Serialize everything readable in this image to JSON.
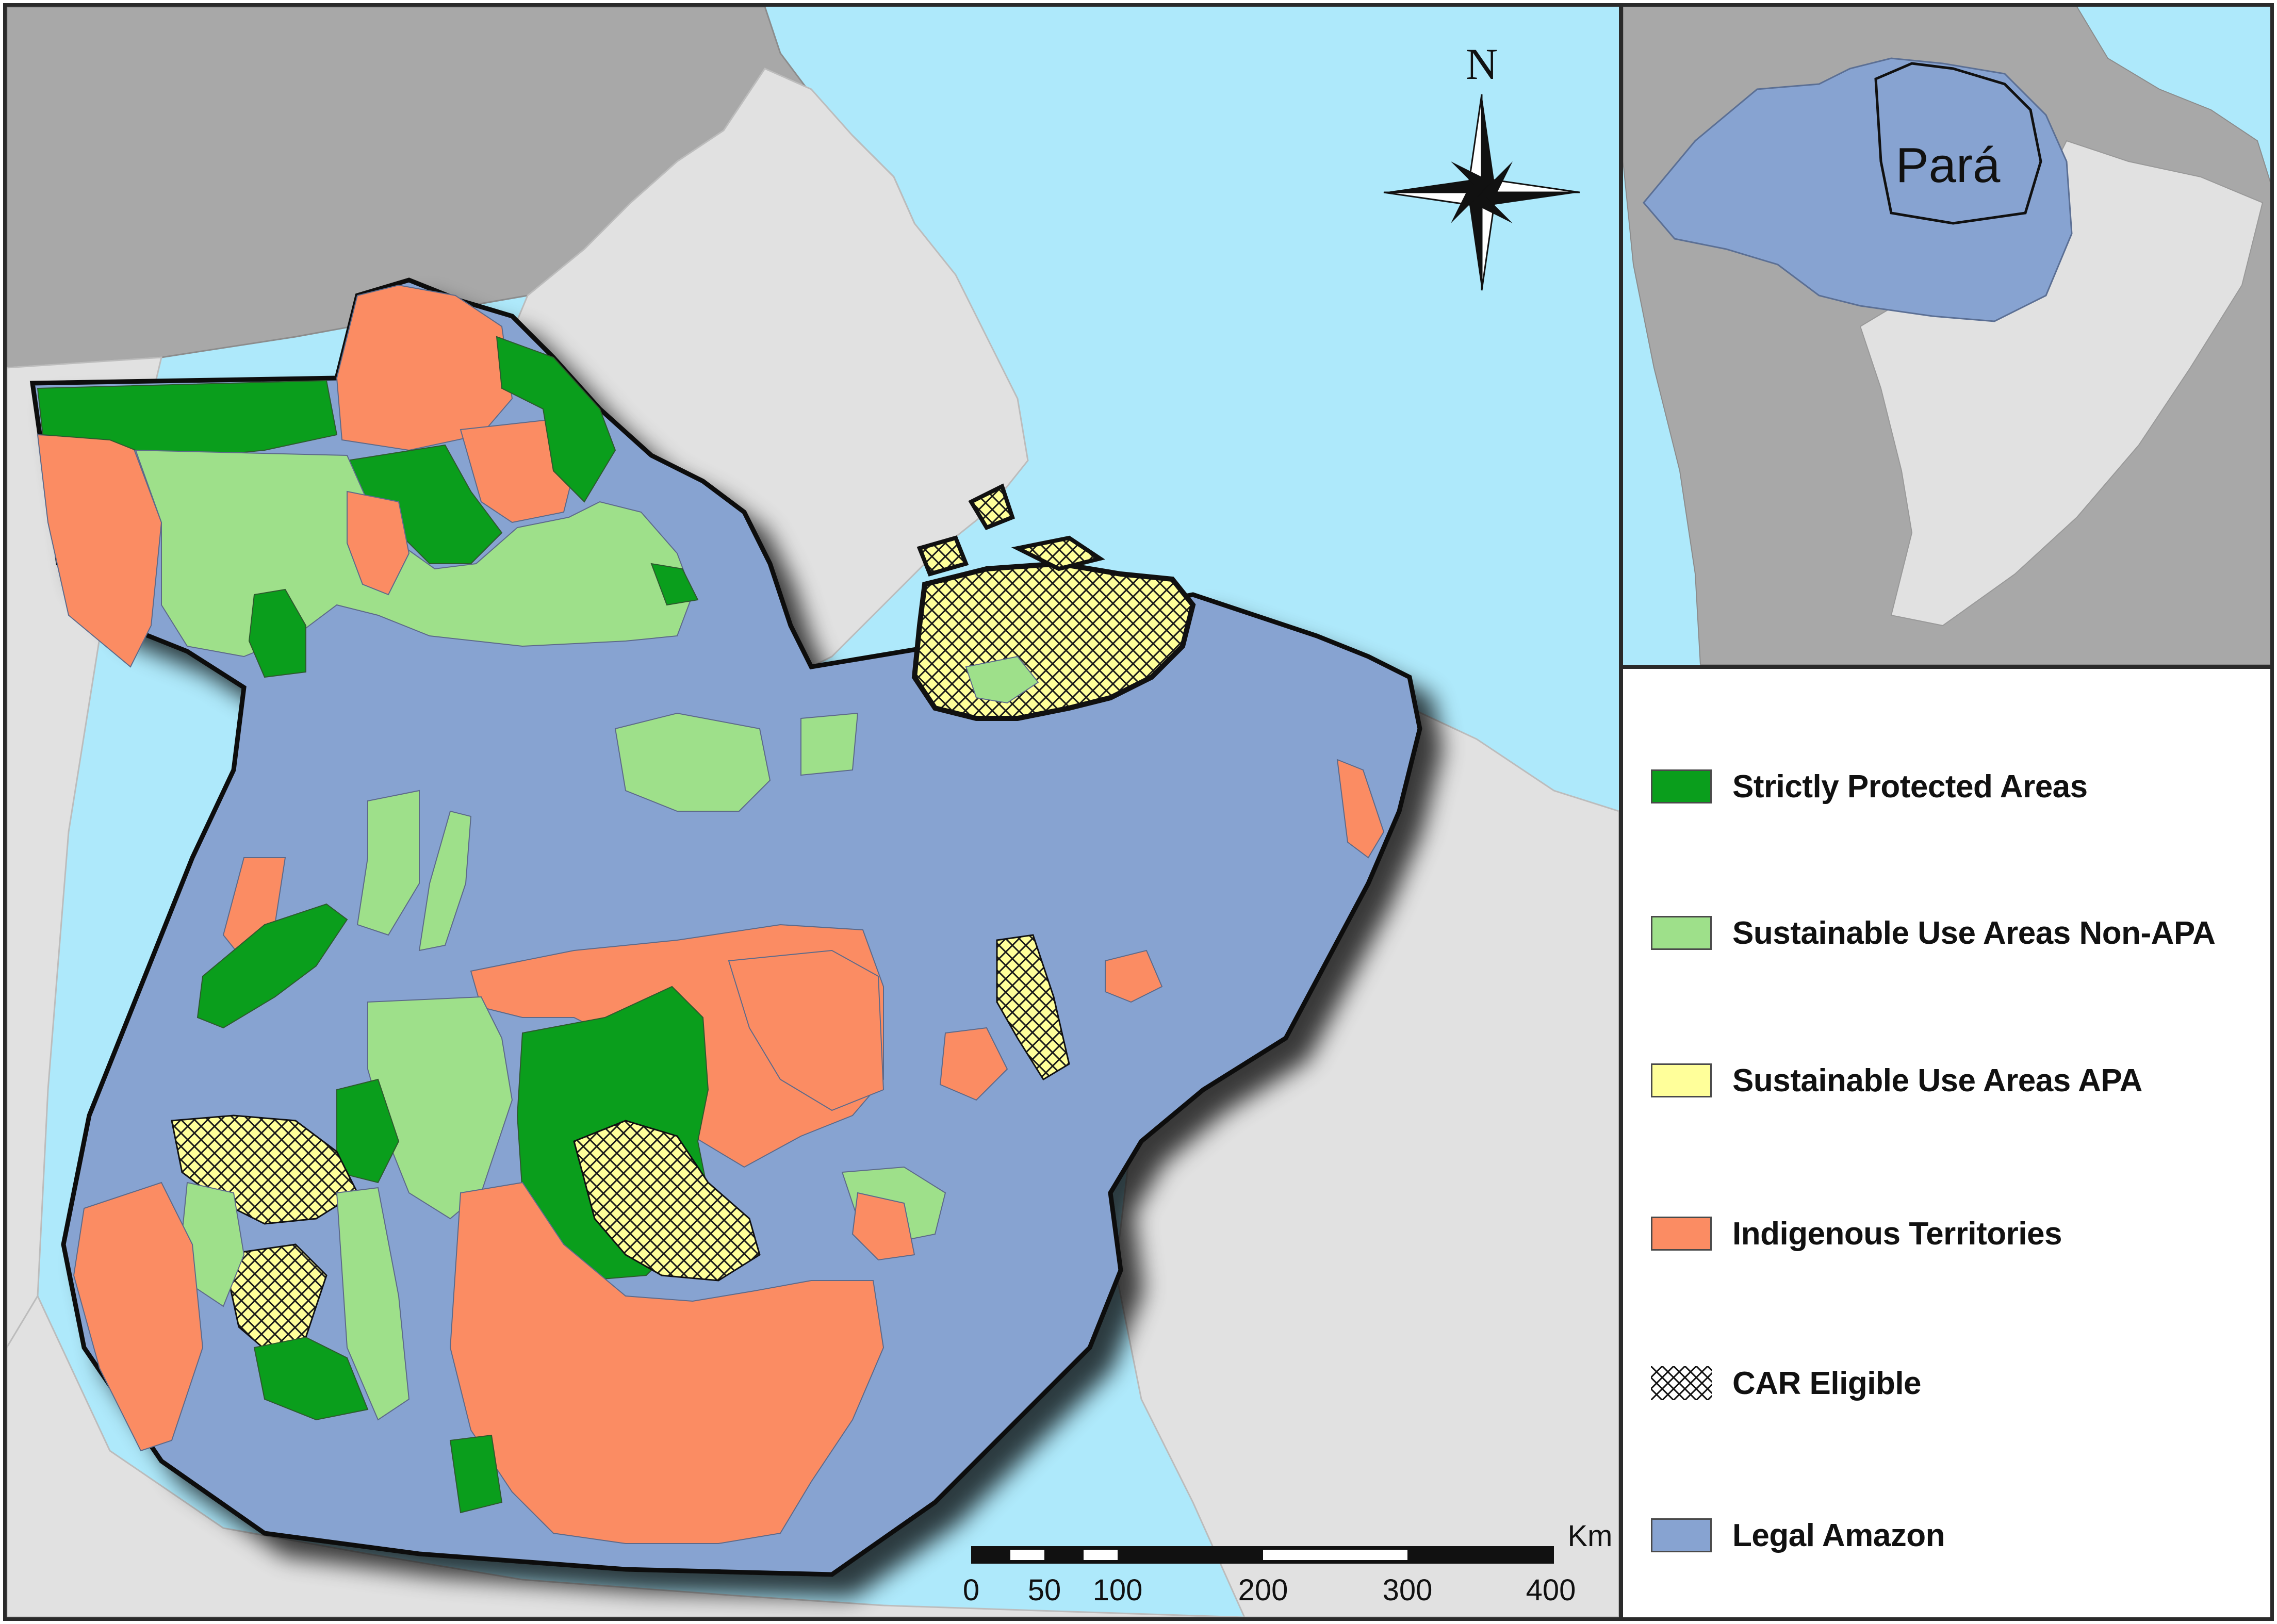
{
  "map": {
    "north_label": "N",
    "inset_label": "Pará",
    "scale": {
      "unit": "Km",
      "ticks": [
        "0",
        "50",
        "100",
        "200",
        "300",
        "400"
      ]
    }
  },
  "legend": {
    "items": [
      {
        "label": "Strictly Protected Areas",
        "color": "#0a9e1c",
        "pattern": "solid"
      },
      {
        "label": "Sustainable Use Areas Non-APA",
        "color": "#9ee08a",
        "pattern": "solid"
      },
      {
        "label": "Sustainable Use Areas APA",
        "color": "#ffff9a",
        "pattern": "solid"
      },
      {
        "label": "Indigenous Territories",
        "color": "#fb8c63",
        "pattern": "solid"
      },
      {
        "label": "CAR Eligible",
        "color": "#ffffff",
        "pattern": "crosshatch"
      },
      {
        "label": "Legal Amazon",
        "color": "#87a3d1",
        "pattern": "solid"
      }
    ]
  },
  "colors": {
    "ocean": "#aee9fb",
    "land_outside": "#e1e1e1",
    "land_dark": "#a8a8a8",
    "legal_amazon": "#87a3d1",
    "strict": "#0a9e1c",
    "sustainable": "#9ee08a",
    "apa": "#ffff9a",
    "indigenous": "#fb8c63"
  }
}
